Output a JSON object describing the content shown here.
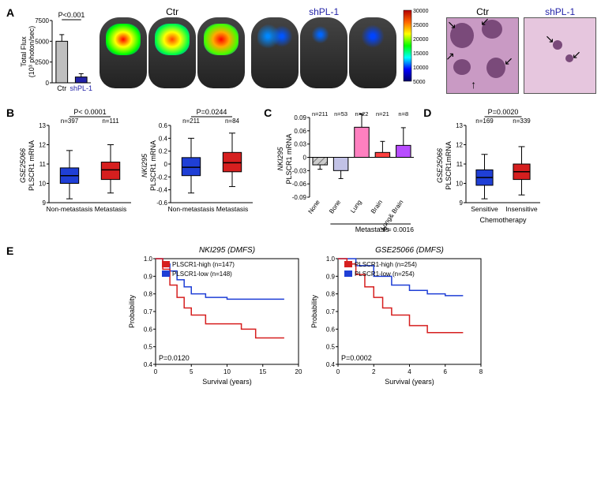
{
  "panelA": {
    "label": "A",
    "bar_chart": {
      "type": "bar",
      "ylabel": "Total Flux\n(10³ photon/sec)",
      "ylim": [
        0,
        7500
      ],
      "yticks": [
        0,
        2500,
        5000,
        7500
      ],
      "categories": [
        "Ctr",
        "shPL-1"
      ],
      "values": [
        5000,
        700
      ],
      "errors": [
        800,
        400
      ],
      "bar_colors": [
        "#bfbfbf",
        "#2323a8"
      ],
      "pvalue": "P<0.001",
      "label_fontsize": 10
    },
    "mouse_labels": {
      "left": "Ctr",
      "right": "shPL-1",
      "right_color": "#2323a8"
    },
    "colorbar": {
      "max": 30000,
      "min": 5000,
      "step": 5000,
      "ticks": [
        30000,
        25000,
        20000,
        15000,
        10000,
        5000
      ],
      "gradient": [
        "#b30000",
        "#ff6600",
        "#ffff00",
        "#00ff00",
        "#00ffff",
        "#0000ff",
        "#000066"
      ]
    },
    "histology_labels": {
      "left": "Ctr",
      "right": "shPL-1",
      "right_color": "#2323a8"
    }
  },
  "panelB": {
    "label": "B",
    "left": {
      "type": "boxplot",
      "dataset": "GSE25066",
      "ylabel": "PLSCR1 mRNA",
      "pvalue": "P< 0.0001",
      "categories": [
        "Non-metastasis",
        "Metastasis"
      ],
      "ns": [
        "n=397",
        "n=111"
      ],
      "boxes": [
        {
          "median": 10.4,
          "q1": 10.0,
          "q3": 10.8,
          "whisker_low": 9.2,
          "whisker_high": 11.7,
          "color": "#1f3fd6"
        },
        {
          "median": 10.7,
          "q1": 10.2,
          "q3": 11.1,
          "whisker_low": 9.5,
          "whisker_high": 12.0,
          "color": "#d61f1f"
        }
      ],
      "ylim": [
        9,
        13
      ],
      "yticks": [
        9,
        10,
        11,
        12,
        13
      ]
    },
    "right": {
      "type": "boxplot",
      "dataset": "NKI295",
      "ylabel": "PLSCR1 mRNA",
      "pvalue": "P=0.0244",
      "categories": [
        "Non-metastasis",
        "Metastasis"
      ],
      "ns": [
        "n=211",
        "n=84"
      ],
      "boxes": [
        {
          "median": -0.05,
          "q1": -0.18,
          "q3": 0.1,
          "whisker_low": -0.45,
          "whisker_high": 0.4,
          "color": "#1f3fd6"
        },
        {
          "median": 0.02,
          "q1": -0.12,
          "q3": 0.18,
          "whisker_low": -0.35,
          "whisker_high": 0.48,
          "color": "#d61f1f"
        }
      ],
      "ylim": [
        -0.6,
        0.6
      ],
      "yticks": [
        -0.6,
        -0.4,
        -0.2,
        0,
        0.2,
        0.4,
        0.6
      ]
    }
  },
  "panelC": {
    "label": "C",
    "type": "bar",
    "dataset": "NKI295",
    "ylabel": "PLSCR1 mRNA",
    "ylim": [
      -0.09,
      0.09
    ],
    "yticks": [
      -0.09,
      -0.06,
      -0.03,
      0,
      0.03,
      0.06,
      0.09
    ],
    "group_label_left": "None",
    "group_label_right": "Metastasis",
    "pvalue": "P= 0.0016",
    "categories": [
      "None",
      "Bone",
      "Lung",
      "Brain",
      "Lung& Brain"
    ],
    "ns": [
      "n=211",
      "n=53",
      "n=22",
      "n=21",
      "n=8"
    ],
    "values": [
      -0.017,
      -0.03,
      0.068,
      0.011,
      0.027
    ],
    "errors": [
      0.01,
      0.018,
      0.03,
      0.025,
      0.04
    ],
    "bar_colors": [
      "#cccccc",
      "#c2c2e6",
      "#ff80c0",
      "#ff4040",
      "#b84dff"
    ],
    "hatch": [
      "diag",
      "none",
      "none",
      "none",
      "none"
    ]
  },
  "panelD": {
    "label": "D",
    "type": "boxplot",
    "dataset": "GSE25066",
    "ylabel": "PLSCR1mRNA",
    "pvalue": "P=0.0020",
    "categories": [
      "Sensitive",
      "Insensitive"
    ],
    "xlabel": "Chemotherapy",
    "ns": [
      "n=169",
      "n=339"
    ],
    "boxes": [
      {
        "median": 10.3,
        "q1": 9.9,
        "q3": 10.7,
        "whisker_low": 9.2,
        "whisker_high": 11.5,
        "color": "#1f3fd6"
      },
      {
        "median": 10.6,
        "q1": 10.2,
        "q3": 11.0,
        "whisker_low": 9.4,
        "whisker_high": 11.9,
        "color": "#d61f1f"
      }
    ],
    "ylim": [
      9,
      13
    ],
    "yticks": [
      9,
      10,
      11,
      12,
      13
    ]
  },
  "panelE": {
    "label": "E",
    "left": {
      "type": "survival",
      "title": "NKI295 (DMFS)",
      "xlabel": "Survival (years)",
      "ylabel": "Probability",
      "xlim": [
        0,
        20
      ],
      "xticks": [
        0,
        5,
        10,
        15,
        20
      ],
      "ylim": [
        0.4,
        1.0
      ],
      "yticks": [
        0.4,
        0.5,
        0.6,
        0.7,
        0.8,
        0.9,
        1.0
      ],
      "pvalue": "P=0.0120",
      "legend": [
        {
          "label": "PLSCR1-high  (n=147)",
          "color": "#d61f1f"
        },
        {
          "label": "PLSCR1-low   (n=148)",
          "color": "#1f3fd6"
        }
      ],
      "curve_high": [
        [
          0,
          1.0
        ],
        [
          1,
          0.94
        ],
        [
          2,
          0.85
        ],
        [
          3,
          0.78
        ],
        [
          4,
          0.72
        ],
        [
          5,
          0.68
        ],
        [
          7,
          0.63
        ],
        [
          10,
          0.63
        ],
        [
          12,
          0.6
        ],
        [
          14,
          0.55
        ],
        [
          18,
          0.55
        ]
      ],
      "curve_low": [
        [
          0,
          1.0
        ],
        [
          1,
          0.97
        ],
        [
          2,
          0.93
        ],
        [
          3,
          0.88
        ],
        [
          4,
          0.84
        ],
        [
          5,
          0.8
        ],
        [
          7,
          0.78
        ],
        [
          10,
          0.77
        ],
        [
          12,
          0.77
        ],
        [
          18,
          0.77
        ]
      ]
    },
    "right": {
      "type": "survival",
      "title": "GSE25066 (DMFS)",
      "xlabel": "Survival (years)",
      "ylabel": "Probability",
      "xlim": [
        0,
        8
      ],
      "xticks": [
        0,
        2,
        4,
        6,
        8
      ],
      "ylim": [
        0.4,
        1.0
      ],
      "yticks": [
        0.4,
        0.5,
        0.6,
        0.7,
        0.8,
        0.9,
        1.0
      ],
      "pvalue": "P=0.0002",
      "legend": [
        {
          "label": "PLSCR1-high  (n=254)",
          "color": "#d61f1f"
        },
        {
          "label": "PLSCR1-low   (n=254)",
          "color": "#1f3fd6"
        }
      ],
      "curve_high": [
        [
          0,
          1.0
        ],
        [
          0.5,
          0.97
        ],
        [
          1,
          0.91
        ],
        [
          1.5,
          0.84
        ],
        [
          2,
          0.78
        ],
        [
          2.5,
          0.72
        ],
        [
          3,
          0.68
        ],
        [
          4,
          0.62
        ],
        [
          5,
          0.58
        ],
        [
          6,
          0.58
        ],
        [
          7,
          0.58
        ]
      ],
      "curve_low": [
        [
          0,
          1.0
        ],
        [
          1,
          0.96
        ],
        [
          2,
          0.9
        ],
        [
          3,
          0.85
        ],
        [
          4,
          0.82
        ],
        [
          5,
          0.8
        ],
        [
          6,
          0.79
        ],
        [
          7,
          0.79
        ]
      ]
    }
  }
}
